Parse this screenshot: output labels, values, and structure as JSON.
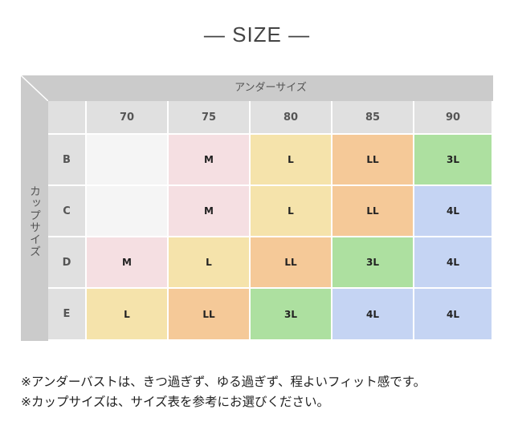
{
  "title": "— SIZE —",
  "table": {
    "under_label": "アンダーサイズ",
    "cup_label": "カップサイズ",
    "columns": [
      "70",
      "75",
      "80",
      "85",
      "90"
    ],
    "rows": [
      {
        "cup": "B",
        "cells": [
          "",
          "M",
          "L",
          "LL",
          "3L"
        ]
      },
      {
        "cup": "C",
        "cells": [
          "",
          "M",
          "L",
          "LL",
          "4L"
        ]
      },
      {
        "cup": "D",
        "cells": [
          "M",
          "L",
          "LL",
          "3L",
          "4L"
        ]
      },
      {
        "cup": "E",
        "cells": [
          "L",
          "LL",
          "3L",
          "4L",
          "4L"
        ]
      }
    ]
  },
  "colors": {
    "": "#f5f5f5",
    "M": "#f5dfe2",
    "L": "#f5e3ab",
    "LL": "#f5c998",
    "3L": "#ade0a0",
    "4L": "#c5d4f3"
  },
  "notes": [
    "※アンダーバストは、きつ過ぎず、ゆる過ぎず、程よいフィット感です。",
    "※カップサイズは、サイズ表を参考にお選びください。"
  ]
}
